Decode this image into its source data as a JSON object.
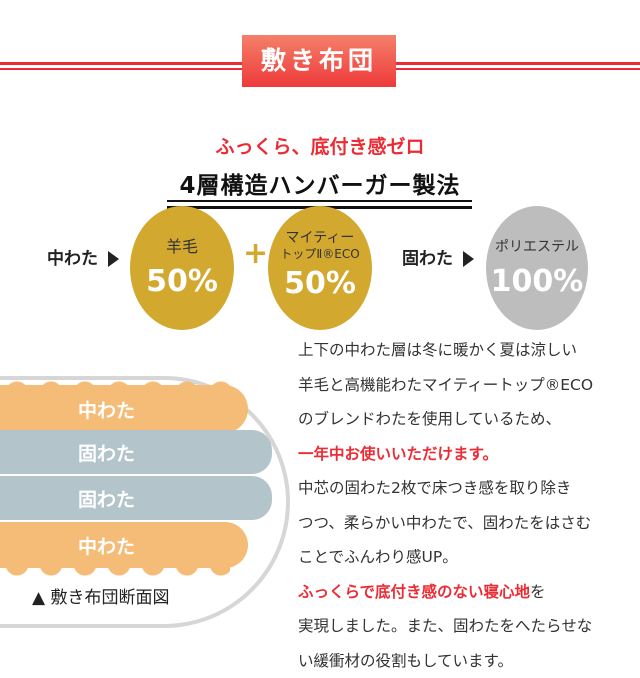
{
  "banner": "敷き布団",
  "subtitle": "ふっくら、底付き感ゼロ",
  "title": "4層構造ハンバーガー製法",
  "composition": {
    "naka_label": "中わた",
    "circles": [
      {
        "label": "羊毛",
        "percent": "50%",
        "color": "#d2a82f"
      },
      {
        "label_line1": "マイティー",
        "label_line2": "トップⅡ®ECO",
        "percent": "50%",
        "color": "#d2a82f"
      },
      {
        "label": "ポリエステル",
        "percent": "100%",
        "color": "#bdbdbd"
      }
    ],
    "plus": "+",
    "kata_label": "固わた"
  },
  "diagram": {
    "layers": [
      "中わた",
      "固わた",
      "固わた",
      "中わた"
    ],
    "caption": "▲ 敷き布団断面図",
    "colors": {
      "naka": "#f5bc78",
      "kata": "#b3c4cb"
    }
  },
  "description": {
    "lines": [
      {
        "text": "上下の中わた層は冬に暖かく夏は涼しい"
      },
      {
        "text": "羊毛と高機能わたマイティートップ®ECO"
      },
      {
        "text": "のブレンドわたを使用しているため、"
      },
      {
        "text": "一年中お使いいただけます。",
        "highlight": true
      },
      {
        "text": "中芯の固わた2枚で床つき感を取り除き"
      },
      {
        "text": "つつ、柔らかい中わたで、固わたをはさむ"
      },
      {
        "text": "ことでふんわり感UP。"
      },
      {
        "red": "ふっくらで底付き感のない寝心地",
        "text": "を"
      },
      {
        "text": "実現しました。また、固わたをへたらせな"
      },
      {
        "text": "い緩衝材の役割もしています。"
      }
    ]
  }
}
